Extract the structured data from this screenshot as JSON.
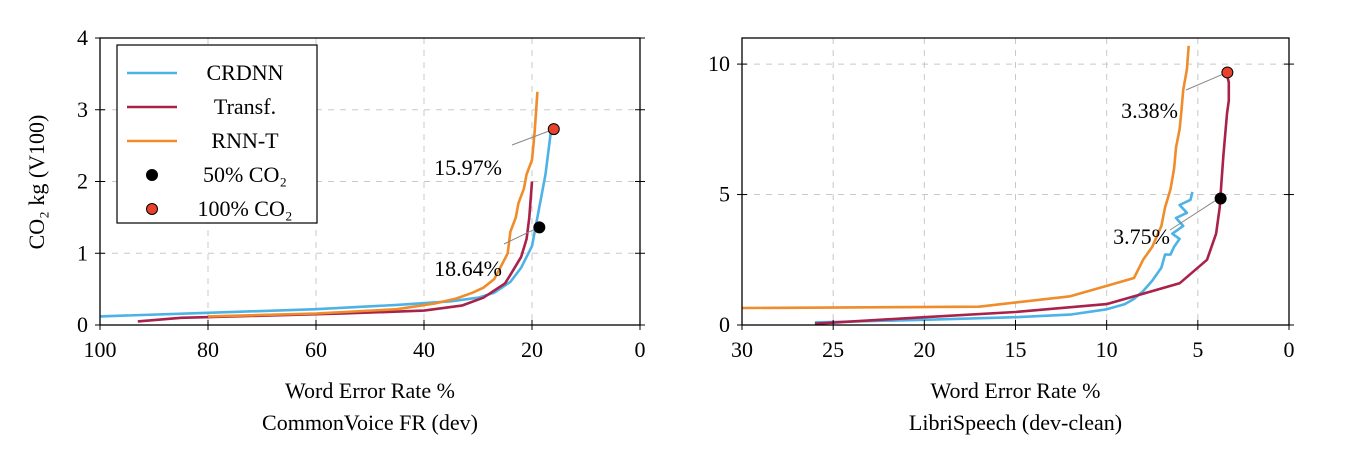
{
  "colors": {
    "CRDNN": "#4db3e6",
    "Transf.": "#a8224a",
    "RNN-T": "#ef8c2b",
    "half": "#000000",
    "full": "#e8412c"
  },
  "ylabel_html": "CO₂ kg (V100)",
  "legend": [
    {
      "label": "CRDNN",
      "kind": "line",
      "color_key": "CRDNN"
    },
    {
      "label": "Transf.",
      "kind": "line",
      "color_key": "Transf."
    },
    {
      "label": "RNN-T",
      "kind": "line",
      "color_key": "RNN-T"
    },
    {
      "label": "50% CO₂",
      "kind": "dot",
      "color_key": "half"
    },
    {
      "label": "100% CO₂",
      "kind": "dot",
      "color_key": "full"
    }
  ],
  "chart_data": [
    {
      "type": "line",
      "xlabel": "Word Error Rate %",
      "subtitle": "CommonVoice FR (dev)",
      "ylabel": "CO₂ kg (V100)",
      "xlim": [
        100,
        0
      ],
      "ylim": [
        0,
        4
      ],
      "xticks": [
        100,
        80,
        60,
        40,
        20,
        0
      ],
      "yticks": [
        0,
        1,
        2,
        3,
        4
      ],
      "grid": true,
      "legend_position": "top-left",
      "series": [
        {
          "name": "CRDNN",
          "x": [
            100,
            80,
            60,
            45,
            35,
            30,
            27,
            24,
            22,
            20,
            19.5,
            19,
            18.5,
            18,
            17.5,
            17,
            16.5
          ],
          "y": [
            0.12,
            0.17,
            0.22,
            0.28,
            0.33,
            0.38,
            0.45,
            0.6,
            0.8,
            1.1,
            1.3,
            1.5,
            1.7,
            1.9,
            2.1,
            2.4,
            2.7
          ]
        },
        {
          "name": "Transf.",
          "x": [
            93,
            85,
            70,
            55,
            40,
            33,
            29,
            27,
            25,
            24,
            22,
            21,
            20.5,
            20
          ],
          "y": [
            0.05,
            0.1,
            0.13,
            0.16,
            0.2,
            0.27,
            0.38,
            0.48,
            0.58,
            0.7,
            0.95,
            1.2,
            1.5,
            2.0
          ]
        },
        {
          "name": "RNN-T",
          "x": [
            80,
            60,
            45,
            38,
            34,
            31,
            29,
            27,
            26,
            24.5,
            24,
            23,
            22.5,
            21.5,
            21,
            20,
            19.5,
            19
          ],
          "y": [
            0.12,
            0.16,
            0.22,
            0.3,
            0.37,
            0.45,
            0.52,
            0.64,
            0.78,
            1.0,
            1.3,
            1.5,
            1.7,
            1.9,
            2.1,
            2.3,
            2.7,
            3.25
          ]
        }
      ],
      "points": [
        {
          "name": "50% CO₂",
          "x": 18.64,
          "y": 1.36,
          "label": "18.64%",
          "color_key": "half"
        },
        {
          "name": "100% CO₂",
          "x": 15.97,
          "y": 2.73,
          "label": "15.97%",
          "color_key": "full"
        }
      ]
    },
    {
      "type": "line",
      "xlabel": "Word Error Rate %",
      "subtitle": "LibriSpeech (dev-clean)",
      "xlim": [
        30,
        0
      ],
      "ylim": [
        0,
        11
      ],
      "xticks": [
        30,
        25,
        20,
        15,
        10,
        5,
        0
      ],
      "yticks": [
        0,
        5,
        10
      ],
      "grid": true,
      "series": [
        {
          "name": "CRDNN",
          "x": [
            26,
            20,
            15,
            12,
            10,
            9,
            8.5,
            8,
            7.5,
            7,
            6.8,
            6.5,
            6.3,
            6.0,
            6.4,
            5.8,
            6.2,
            5.6,
            6.0,
            5.4,
            5.3
          ],
          "y": [
            0.1,
            0.2,
            0.3,
            0.4,
            0.6,
            0.8,
            1.0,
            1.3,
            1.7,
            2.2,
            2.7,
            2.7,
            3.0,
            3.3,
            3.5,
            3.8,
            4.1,
            4.3,
            4.6,
            4.8,
            5.1
          ]
        },
        {
          "name": "Transf.",
          "x": [
            26,
            20,
            15,
            10,
            8,
            6,
            4.5,
            4,
            3.8,
            3.7,
            3.6,
            3.5,
            3.4,
            3.3,
            3.3,
            3.4
          ],
          "y": [
            0.05,
            0.3,
            0.5,
            0.8,
            1.2,
            1.6,
            2.5,
            3.5,
            4.5,
            5.5,
            6.5,
            7.3,
            8.1,
            8.6,
            9.3,
            9.6
          ]
        },
        {
          "name": "RNN-T",
          "x": [
            30,
            17,
            12,
            10,
            8.5,
            8,
            7.5,
            7,
            6.8,
            6.5,
            6.3,
            6.2,
            6.0,
            5.9,
            5.8,
            5.6,
            5.5
          ],
          "y": [
            0.65,
            0.7,
            1.1,
            1.5,
            1.8,
            2.5,
            3.0,
            3.8,
            4.5,
            5.2,
            6.0,
            6.8,
            7.5,
            8.2,
            9.0,
            9.8,
            10.7
          ]
        }
      ],
      "points": [
        {
          "name": "50% CO₂",
          "x": 3.75,
          "y": 4.85,
          "label": "3.75%",
          "color_key": "half"
        },
        {
          "name": "100% CO₂",
          "x": 3.38,
          "y": 9.68,
          "label": "3.38%",
          "color_key": "full"
        }
      ]
    }
  ]
}
